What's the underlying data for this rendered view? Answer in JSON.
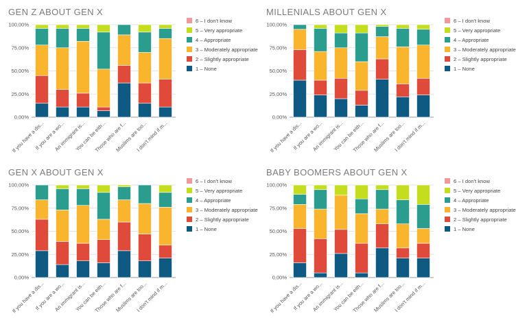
{
  "series_meta": [
    {
      "name": "6 – I don't know",
      "color": "#f0999b"
    },
    {
      "name": "5 – Very appropriate",
      "color": "#c4dd1e"
    },
    {
      "name": "4 – Appropriate",
      "color": "#2a9d8f"
    },
    {
      "name": "3 – Moderately appropriate",
      "color": "#f9b52d"
    },
    {
      "name": "2 – Slightly appropriate",
      "color": "#e04a3a"
    },
    {
      "name": "1 – None",
      "color": "#0e5a83"
    }
  ],
  "chart_data": [
    {
      "type": "bar",
      "stacked": true,
      "title": "GEN Z ABOUT GEN X",
      "categories": [
        "If you have a dis...",
        "If you are a wo...",
        "An immigrant is...",
        "You can be eith...",
        "Those who are f...",
        "Muslims are too...",
        "I don't mind if m..."
      ],
      "yticks": [
        "0,00%",
        "25,00%",
        "50,00%",
        "75,00%",
        "100,00%"
      ],
      "ylim": [
        0,
        100
      ],
      "legend_position": "right",
      "series": [
        {
          "name": "1 – None",
          "values": [
            15,
            11,
            11,
            7,
            37,
            15,
            11
          ]
        },
        {
          "name": "2 – Slightly appropriate",
          "values": [
            30,
            19,
            15,
            4,
            19,
            22,
            30
          ]
        },
        {
          "name": "3 – Moderately appropriate",
          "values": [
            33,
            45,
            56,
            41,
            33,
            33,
            44
          ]
        },
        {
          "name": "4 – Appropriate",
          "values": [
            18,
            21,
            14,
            40,
            11,
            22,
            11
          ]
        },
        {
          "name": "5 – Very appropriate",
          "values": [
            4,
            4,
            4,
            8,
            0,
            8,
            4
          ]
        },
        {
          "name": "6 – I don't know",
          "values": [
            0,
            0,
            0,
            0,
            0,
            0,
            0
          ]
        }
      ]
    },
    {
      "type": "bar",
      "stacked": true,
      "title": "MILLENIALS ABOUT GEN X",
      "categories": [
        "If you have a dis...",
        "If you are a wo...",
        "An immigrant is...",
        "You can be eith...",
        "Those who are f...",
        "Muslims are too...",
        "I don't mind if m..."
      ],
      "yticks": [
        "0,00%",
        "25,00%",
        "50,00%",
        "75,00%",
        "100,00%"
      ],
      "ylim": [
        0,
        100
      ],
      "legend_position": "right",
      "series": [
        {
          "name": "1 – None",
          "values": [
            40,
            24,
            20,
            13,
            41,
            22,
            24
          ]
        },
        {
          "name": "2 – Slightly appropriate",
          "values": [
            33,
            16,
            22,
            16,
            22,
            14,
            18
          ]
        },
        {
          "name": "3 – Moderately appropriate",
          "values": [
            22,
            31,
            33,
            31,
            24,
            40,
            36
          ]
        },
        {
          "name": "4 – Appropriate",
          "values": [
            5,
            25,
            16,
            31,
            11,
            20,
            17
          ]
        },
        {
          "name": "5 – Very appropriate",
          "values": [
            0,
            4,
            9,
            9,
            2,
            4,
            5
          ]
        },
        {
          "name": "6 – I don't know",
          "values": [
            0,
            0,
            0,
            0,
            0,
            0,
            0
          ]
        }
      ]
    },
    {
      "type": "bar",
      "stacked": true,
      "title": "GEN X ABOUT GEN X",
      "categories": [
        "If you have a dis...",
        "If you are a wo...",
        "An immigrant is...",
        "You can be eith...",
        "Those who are f...",
        "Muslims are too...",
        "I don't mind if m..."
      ],
      "yticks": [
        "0,00%",
        "25,00%",
        "50,00%",
        "75,00%",
        "100,00%"
      ],
      "ylim": [
        0,
        100
      ],
      "legend_position": "right",
      "series": [
        {
          "name": "1 – None",
          "values": [
            29,
            14,
            18,
            16,
            29,
            18,
            21
          ]
        },
        {
          "name": "2 – Slightly appropriate",
          "values": [
            34,
            25,
            19,
            25,
            31,
            29,
            14
          ]
        },
        {
          "name": "3 – Moderately appropriate",
          "values": [
            21,
            34,
            41,
            22,
            24,
            33,
            41
          ]
        },
        {
          "name": "4 – Appropriate",
          "values": [
            16,
            23,
            18,
            29,
            14,
            20,
            16
          ]
        },
        {
          "name": "5 – Very appropriate",
          "values": [
            0,
            4,
            4,
            8,
            2,
            0,
            8
          ]
        },
        {
          "name": "6 – I don't know",
          "values": [
            0,
            0,
            0,
            0,
            0,
            0,
            0
          ]
        }
      ]
    },
    {
      "type": "bar",
      "stacked": true,
      "title": "BABY BOOMERS ABOUT GEN X",
      "categories": [
        "If you have a dis...",
        "If you are a wo...",
        "An immigrant is...",
        "You can be eith...",
        "Those who are f...",
        "Muslims are too...",
        "I don't mind if m..."
      ],
      "yticks": [
        "0,00%",
        "25,00%",
        "50,00%",
        "75,00%",
        "100,00%"
      ],
      "ylim": [
        0,
        100
      ],
      "legend_position": "right",
      "series": [
        {
          "name": "1 – None",
          "values": [
            16,
            5,
            26,
            5,
            32,
            21,
            21
          ]
        },
        {
          "name": "2 – Slightly appropriate",
          "values": [
            37,
            37,
            26,
            32,
            26,
            11,
            16
          ]
        },
        {
          "name": "3 – Moderately appropriate",
          "values": [
            26,
            32,
            37,
            32,
            16,
            26,
            16
          ]
        },
        {
          "name": "4 – Appropriate",
          "values": [
            11,
            21,
            0,
            16,
            21,
            26,
            26
          ]
        },
        {
          "name": "5 – Very appropriate",
          "values": [
            10,
            5,
            11,
            15,
            5,
            16,
            21
          ]
        },
        {
          "name": "6 – I don't know",
          "values": [
            0,
            0,
            0,
            0,
            0,
            0,
            0
          ]
        }
      ]
    }
  ]
}
